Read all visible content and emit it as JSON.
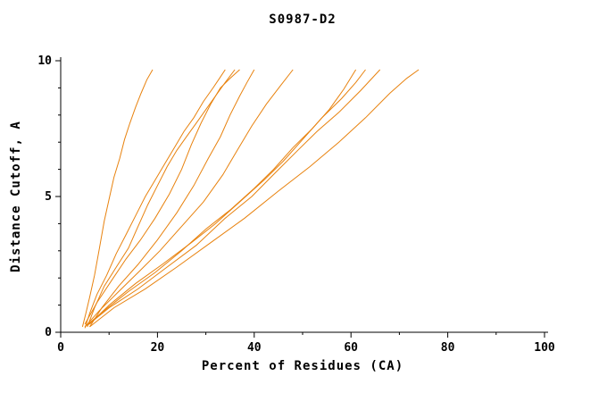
{
  "chart_data": {
    "type": "line",
    "title": "S0987-D2",
    "xlabel": "Percent of Residues (CA)",
    "ylabel": "Distance Cutoff, A",
    "xlim": [
      0,
      100
    ],
    "ylim": [
      0,
      10
    ],
    "xticks": {
      "major": [
        0,
        20,
        40,
        60,
        80,
        100
      ],
      "minor_step": 10
    },
    "yticks": {
      "major": [
        0,
        5,
        10
      ],
      "minor_step": 1
    },
    "grid": false,
    "legend": "none",
    "line_color": "#e8820e",
    "series": [
      {
        "points": [
          [
            4.5,
            0.2
          ],
          [
            5.2,
            0.7
          ],
          [
            6,
            1.3
          ],
          [
            7,
            2.1
          ],
          [
            8,
            3.1
          ],
          [
            9,
            4.1
          ],
          [
            10,
            4.9
          ],
          [
            11,
            5.7
          ],
          [
            12.2,
            6.4
          ],
          [
            13.2,
            7.1
          ],
          [
            14.3,
            7.7
          ],
          [
            15.5,
            8.3
          ],
          [
            16.6,
            8.8
          ],
          [
            17.8,
            9.3
          ],
          [
            19,
            9.67
          ]
        ]
      },
      {
        "points": [
          [
            5,
            0.15
          ],
          [
            6,
            0.7
          ],
          [
            7.5,
            1.4
          ],
          [
            9.5,
            2.1
          ],
          [
            11.5,
            2.9
          ],
          [
            13.5,
            3.6
          ],
          [
            15.5,
            4.3
          ],
          [
            17.5,
            5.0
          ],
          [
            19.5,
            5.6
          ],
          [
            21.5,
            6.2
          ],
          [
            23.5,
            6.8
          ],
          [
            25.5,
            7.4
          ],
          [
            27.5,
            7.9
          ],
          [
            29.5,
            8.5
          ],
          [
            31.5,
            9.0
          ],
          [
            33,
            9.4
          ],
          [
            34,
            9.67
          ]
        ]
      },
      {
        "points": [
          [
            5.5,
            0.2
          ],
          [
            7,
            0.9
          ],
          [
            9,
            1.7
          ],
          [
            11.5,
            2.4
          ],
          [
            14,
            3.1
          ],
          [
            16,
            3.9
          ],
          [
            18,
            4.7
          ],
          [
            20,
            5.4
          ],
          [
            22,
            6.1
          ],
          [
            24,
            6.7
          ],
          [
            26,
            7.2
          ],
          [
            28,
            7.7
          ],
          [
            30,
            8.2
          ],
          [
            32,
            8.7
          ],
          [
            34,
            9.2
          ],
          [
            36,
            9.67
          ]
        ]
      },
      {
        "points": [
          [
            5,
            0.3
          ],
          [
            7.5,
            1.1
          ],
          [
            10.5,
            1.9
          ],
          [
            13.5,
            2.7
          ],
          [
            16.5,
            3.4
          ],
          [
            19.5,
            4.2
          ],
          [
            22.5,
            5.1
          ],
          [
            25,
            6.0
          ],
          [
            27,
            6.9
          ],
          [
            29,
            7.7
          ],
          [
            31,
            8.4
          ],
          [
            33,
            9.0
          ],
          [
            35,
            9.35
          ],
          [
            37,
            9.67
          ]
        ]
      },
      {
        "points": [
          [
            6,
            0.2
          ],
          [
            8.5,
            0.9
          ],
          [
            12,
            1.7
          ],
          [
            16,
            2.5
          ],
          [
            20,
            3.4
          ],
          [
            24,
            4.4
          ],
          [
            27.5,
            5.4
          ],
          [
            30.5,
            6.4
          ],
          [
            33,
            7.2
          ],
          [
            35,
            8.0
          ],
          [
            37,
            8.7
          ],
          [
            38.5,
            9.2
          ],
          [
            40,
            9.67
          ]
        ]
      },
      {
        "points": [
          [
            5,
            0.2
          ],
          [
            8,
            0.8
          ],
          [
            12,
            1.5
          ],
          [
            16,
            2.2
          ],
          [
            20.5,
            3.0
          ],
          [
            25,
            3.9
          ],
          [
            29.5,
            4.8
          ],
          [
            33.5,
            5.8
          ],
          [
            36.5,
            6.7
          ],
          [
            39.5,
            7.6
          ],
          [
            42.5,
            8.4
          ],
          [
            45.5,
            9.1
          ],
          [
            48,
            9.67
          ]
        ]
      },
      {
        "points": [
          [
            5,
            0.2
          ],
          [
            9,
            0.8
          ],
          [
            14,
            1.5
          ],
          [
            19.5,
            2.2
          ],
          [
            25,
            3.0
          ],
          [
            30,
            3.8
          ],
          [
            35,
            4.5
          ],
          [
            40,
            5.3
          ],
          [
            44,
            6.0
          ],
          [
            48,
            6.8
          ],
          [
            52,
            7.5
          ],
          [
            55.5,
            8.2
          ],
          [
            58.5,
            8.95
          ],
          [
            61,
            9.67
          ]
        ]
      },
      {
        "points": [
          [
            6,
            0.3
          ],
          [
            10,
            1.0
          ],
          [
            15.5,
            1.8
          ],
          [
            21,
            2.5
          ],
          [
            27,
            3.3
          ],
          [
            32,
            4.0
          ],
          [
            37,
            4.8
          ],
          [
            42,
            5.6
          ],
          [
            46,
            6.3
          ],
          [
            50,
            7.1
          ],
          [
            54,
            7.9
          ],
          [
            58,
            8.6
          ],
          [
            61,
            9.2
          ],
          [
            63,
            9.67
          ]
        ]
      },
      {
        "points": [
          [
            5.5,
            0.25
          ],
          [
            10,
            0.9
          ],
          [
            16,
            1.6
          ],
          [
            22,
            2.4
          ],
          [
            28,
            3.2
          ],
          [
            34,
            4.2
          ],
          [
            39.5,
            5.0
          ],
          [
            44.5,
            5.9
          ],
          [
            49,
            6.7
          ],
          [
            53,
            7.4
          ],
          [
            57.5,
            8.1
          ],
          [
            62,
            8.9
          ],
          [
            66,
            9.67
          ]
        ]
      },
      {
        "points": [
          [
            6,
            0.2
          ],
          [
            11,
            0.9
          ],
          [
            17.5,
            1.6
          ],
          [
            24,
            2.4
          ],
          [
            31,
            3.3
          ],
          [
            38,
            4.2
          ],
          [
            45,
            5.2
          ],
          [
            51.5,
            6.1
          ],
          [
            57.5,
            7.0
          ],
          [
            63,
            7.9
          ],
          [
            68,
            8.8
          ],
          [
            71.5,
            9.35
          ],
          [
            74,
            9.67
          ]
        ]
      }
    ]
  }
}
